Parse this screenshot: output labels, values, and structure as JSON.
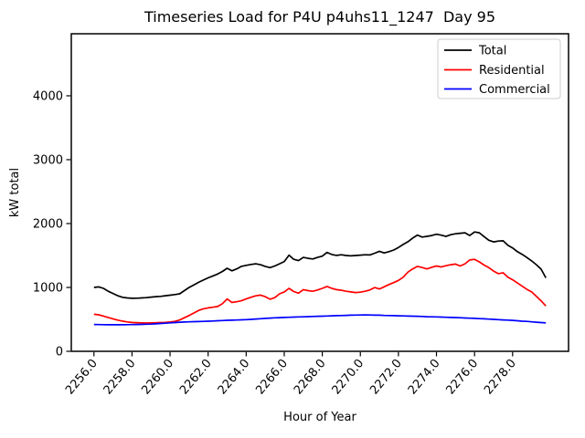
{
  "title": "Timeseries Load for P4U p4uhs11_1247  Day 95",
  "legend": {
    "items": [
      {
        "label": "Total",
        "color": "#000000"
      },
      {
        "label": "Residential",
        "color": "#ff0000"
      },
      {
        "label": "Commercial",
        "color": "#0000ff"
      }
    ]
  },
  "chart_data": {
    "type": "line",
    "title": "Timeseries Load for P4U p4uhs11_1247  Day 95",
    "xlabel": "Hour of Year",
    "ylabel": "kW total",
    "xlim": [
      2254.81,
      2280.94
    ],
    "ylim": [
      0,
      4971
    ],
    "grid": false,
    "legend_position": "upper right",
    "x_start": 2256.0,
    "x_step": 0.25,
    "xticks": [
      2256,
      2258,
      2260,
      2262,
      2264,
      2266,
      2268,
      2270,
      2272,
      2274,
      2276,
      2278
    ],
    "xtick_labels": [
      "2256.0",
      "2258.0",
      "2260.0",
      "2262.0",
      "2264.0",
      "2266.0",
      "2268.0",
      "2270.0",
      "2272.0",
      "2274.0",
      "2276.0",
      "2278.0"
    ],
    "yticks": [
      0,
      1000,
      2000,
      3000,
      4000
    ],
    "ytick_labels": [
      "0",
      "1000",
      "2000",
      "3000",
      "4000"
    ],
    "series": [
      {
        "name": "Total",
        "color": "#000000",
        "values": [
          1000,
          1008,
          985,
          940,
          905,
          870,
          845,
          835,
          830,
          832,
          836,
          840,
          848,
          855,
          860,
          870,
          878,
          888,
          900,
          950,
          1000,
          1040,
          1080,
          1115,
          1150,
          1180,
          1210,
          1250,
          1300,
          1260,
          1290,
          1330,
          1345,
          1360,
          1370,
          1355,
          1330,
          1310,
          1335,
          1370,
          1405,
          1505,
          1440,
          1420,
          1470,
          1455,
          1445,
          1470,
          1490,
          1548,
          1515,
          1502,
          1512,
          1500,
          1494,
          1500,
          1505,
          1512,
          1508,
          1535,
          1565,
          1540,
          1560,
          1585,
          1625,
          1672,
          1715,
          1772,
          1820,
          1788,
          1800,
          1812,
          1832,
          1818,
          1798,
          1825,
          1840,
          1848,
          1856,
          1812,
          1868,
          1855,
          1795,
          1738,
          1712,
          1725,
          1730,
          1660,
          1618,
          1560,
          1518,
          1468,
          1415,
          1355,
          1285,
          1150
        ]
      },
      {
        "name": "Residential",
        "color": "#ff0000",
        "values": [
          580,
          572,
          552,
          530,
          508,
          488,
          473,
          460,
          452,
          448,
          445,
          443,
          445,
          447,
          450,
          453,
          458,
          468,
          490,
          525,
          560,
          600,
          640,
          665,
          680,
          690,
          702,
          745,
          820,
          765,
          775,
          792,
          820,
          845,
          868,
          880,
          855,
          815,
          840,
          900,
          930,
          985,
          935,
          910,
          965,
          950,
          940,
          960,
          985,
          1015,
          985,
          965,
          955,
          940,
          930,
          920,
          925,
          940,
          960,
          998,
          975,
          1010,
          1045,
          1075,
          1110,
          1160,
          1240,
          1290,
          1330,
          1312,
          1290,
          1315,
          1335,
          1320,
          1340,
          1355,
          1365,
          1335,
          1370,
          1430,
          1440,
          1400,
          1350,
          1310,
          1255,
          1215,
          1230,
          1160,
          1120,
          1070,
          1020,
          970,
          930,
          860,
          790,
          710
        ]
      },
      {
        "name": "Commercial",
        "color": "#0000ff",
        "values": [
          420,
          418,
          417,
          416,
          415,
          415,
          416,
          417,
          418,
          420,
          422,
          424,
          426,
          430,
          435,
          440,
          445,
          450,
          455,
          458,
          461,
          464,
          466,
          468,
          471,
          474,
          478,
          481,
          485,
          487,
          490,
          493,
          496,
          500,
          505,
          510,
          515,
          520,
          524,
          527,
          530,
          533,
          536,
          538,
          540,
          543,
          546,
          548,
          550,
          553,
          556,
          558,
          560,
          563,
          565,
          567,
          568,
          570,
          568,
          566,
          565,
          562,
          560,
          558,
          556,
          554,
          552,
          550,
          548,
          545,
          542,
          540,
          538,
          535,
          533,
          530,
          528,
          525,
          522,
          518,
          515,
          512,
          508,
          504,
          500,
          496,
          492,
          488,
          484,
          478,
          472,
          468,
          462,
          456,
          450,
          445
        ]
      }
    ]
  }
}
